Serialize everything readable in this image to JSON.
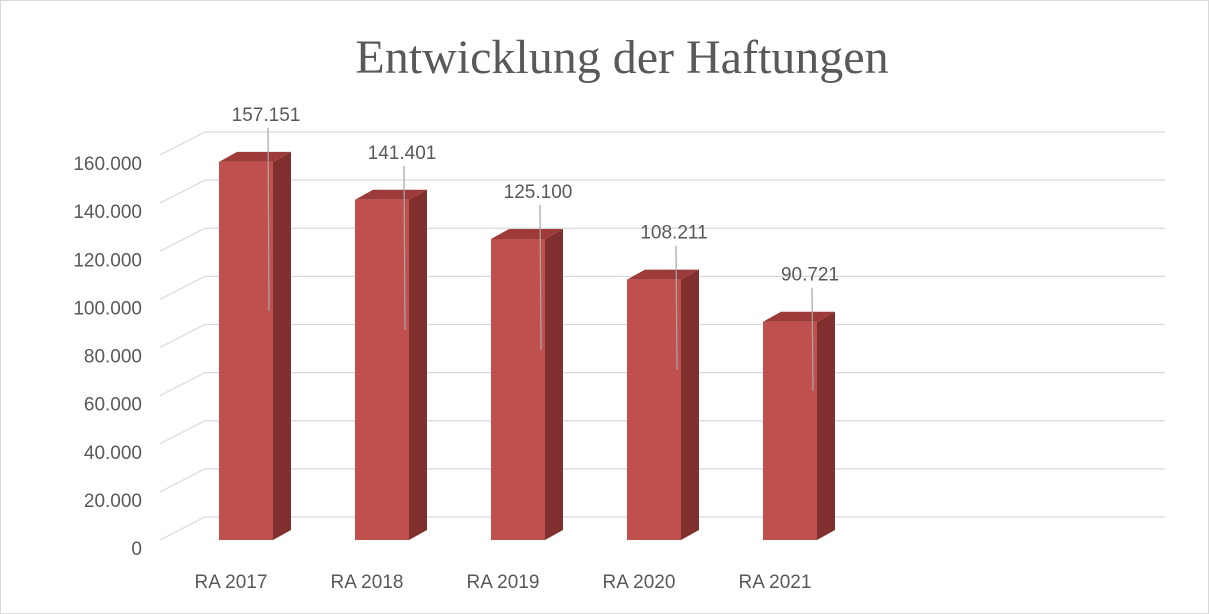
{
  "chart_data": {
    "type": "bar3d",
    "title": "Entwicklung der Haftungen",
    "categories": [
      "RA 2017",
      "RA 2018",
      "RA 2019",
      "RA 2020",
      "RA 2021"
    ],
    "values": [
      157151,
      141401,
      125100,
      108211,
      90721
    ],
    "value_labels": [
      "157.151",
      "141.401",
      "125.100",
      "108.211",
      "90.721"
    ],
    "color": "#c0504d",
    "ylim": [
      0,
      160000
    ],
    "yticks": [
      0,
      {
        "value": 20000,
        "label": "20.000"
      },
      {
        "value": 40000,
        "label": "40.000"
      },
      {
        "value": 60000,
        "label": "60.000"
      },
      {
        "value": 80000,
        "label": "80.000"
      },
      {
        "value": 100000,
        "label": "100.000"
      },
      {
        "value": 120000,
        "label": "120.000"
      },
      {
        "value": 140000,
        "label": "140.000"
      },
      {
        "value": 160000,
        "label": "160.000"
      }
    ],
    "grid": true
  }
}
